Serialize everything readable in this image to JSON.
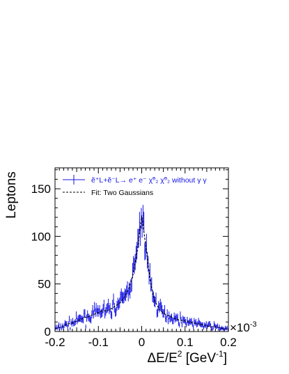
{
  "chart_data": {
    "type": "histogram",
    "ylabel": "Leptons",
    "xlabel": {
      "text": "ΔE/E",
      "sup": "2",
      "unit_open": " [GeV",
      "unit_sup": "-1",
      "unit_close": "]"
    },
    "x_multiplier": {
      "text": "×10",
      "sup": "-3"
    },
    "xlim": [
      -0.2,
      0.2
    ],
    "ylim": [
      0,
      172
    ],
    "xticks": [
      {
        "v": -0.2,
        "label": "-0.2"
      },
      {
        "v": -0.1,
        "label": "-0.1"
      },
      {
        "v": 0,
        "label": "0"
      },
      {
        "v": 0.1,
        "label": "0.1"
      },
      {
        "v": 0.2,
        "label": "0.2"
      }
    ],
    "yticks": [
      {
        "v": 0,
        "label": "0"
      },
      {
        "v": 50,
        "label": "50"
      },
      {
        "v": 100,
        "label": "100"
      },
      {
        "v": 150,
        "label": "150"
      }
    ],
    "legend": {
      "position": "top-left",
      "entries": [
        {
          "label": "ẽ⁺L+ẽ⁻L→ e⁺ e⁻ χ̃⁰₂ χ̃⁰₂ without γ γ",
          "style": "errorbar",
          "color": "#1414e6"
        },
        {
          "label": "Fit: Two Gaussians",
          "style": "dashed",
          "color": "#000000"
        }
      ]
    },
    "series": [
      {
        "style": "histogram-errorbar",
        "color": "#1414e6",
        "x": [
          -0.2,
          -0.19,
          -0.18,
          -0.17,
          -0.16,
          -0.15,
          -0.14,
          -0.13,
          -0.12,
          -0.11,
          -0.1,
          -0.09,
          -0.08,
          -0.07,
          -0.06,
          -0.05,
          -0.04,
          -0.03,
          -0.02,
          -0.01,
          0,
          0.01,
          0.02,
          0.03,
          0.04,
          0.05,
          0.06,
          0.07,
          0.08,
          0.09,
          0.1,
          0.11,
          0.12,
          0.13,
          0.14,
          0.15,
          0.16,
          0.17,
          0.18,
          0.19,
          0.2
        ],
        "y": [
          3,
          4,
          6,
          8,
          9,
          11,
          13,
          15,
          16,
          18,
          20,
          22,
          22,
          24,
          27,
          30,
          36,
          45,
          60,
          85,
          122,
          88,
          52,
          32,
          24,
          19,
          17,
          15,
          13,
          12,
          11,
          10,
          9,
          8,
          7,
          6,
          5,
          5,
          4,
          3,
          2
        ]
      },
      {
        "name": "Fit: Two Gaussians",
        "style": "dashed",
        "color": "#000000",
        "x": [
          -0.2,
          -0.19,
          -0.18,
          -0.17,
          -0.16,
          -0.15,
          -0.14,
          -0.13,
          -0.12,
          -0.11,
          -0.1,
          -0.09,
          -0.08,
          -0.07,
          -0.06,
          -0.05,
          -0.04,
          -0.03,
          -0.02,
          -0.01,
          0,
          0.01,
          0.02,
          0.03,
          0.04,
          0.05,
          0.06,
          0.07,
          0.08,
          0.09,
          0.1,
          0.11,
          0.12,
          0.13,
          0.14,
          0.15,
          0.16,
          0.17,
          0.18,
          0.19,
          0.2
        ],
        "y": [
          3,
          4,
          6,
          8,
          9,
          11,
          13,
          15,
          16,
          18,
          20,
          22,
          22,
          24,
          27,
          30,
          36,
          45,
          60,
          85,
          122,
          88,
          52,
          32,
          24,
          19,
          17,
          15,
          13,
          12,
          11,
          10,
          9,
          8,
          7,
          6,
          5,
          5,
          4,
          3,
          2
        ]
      }
    ]
  }
}
